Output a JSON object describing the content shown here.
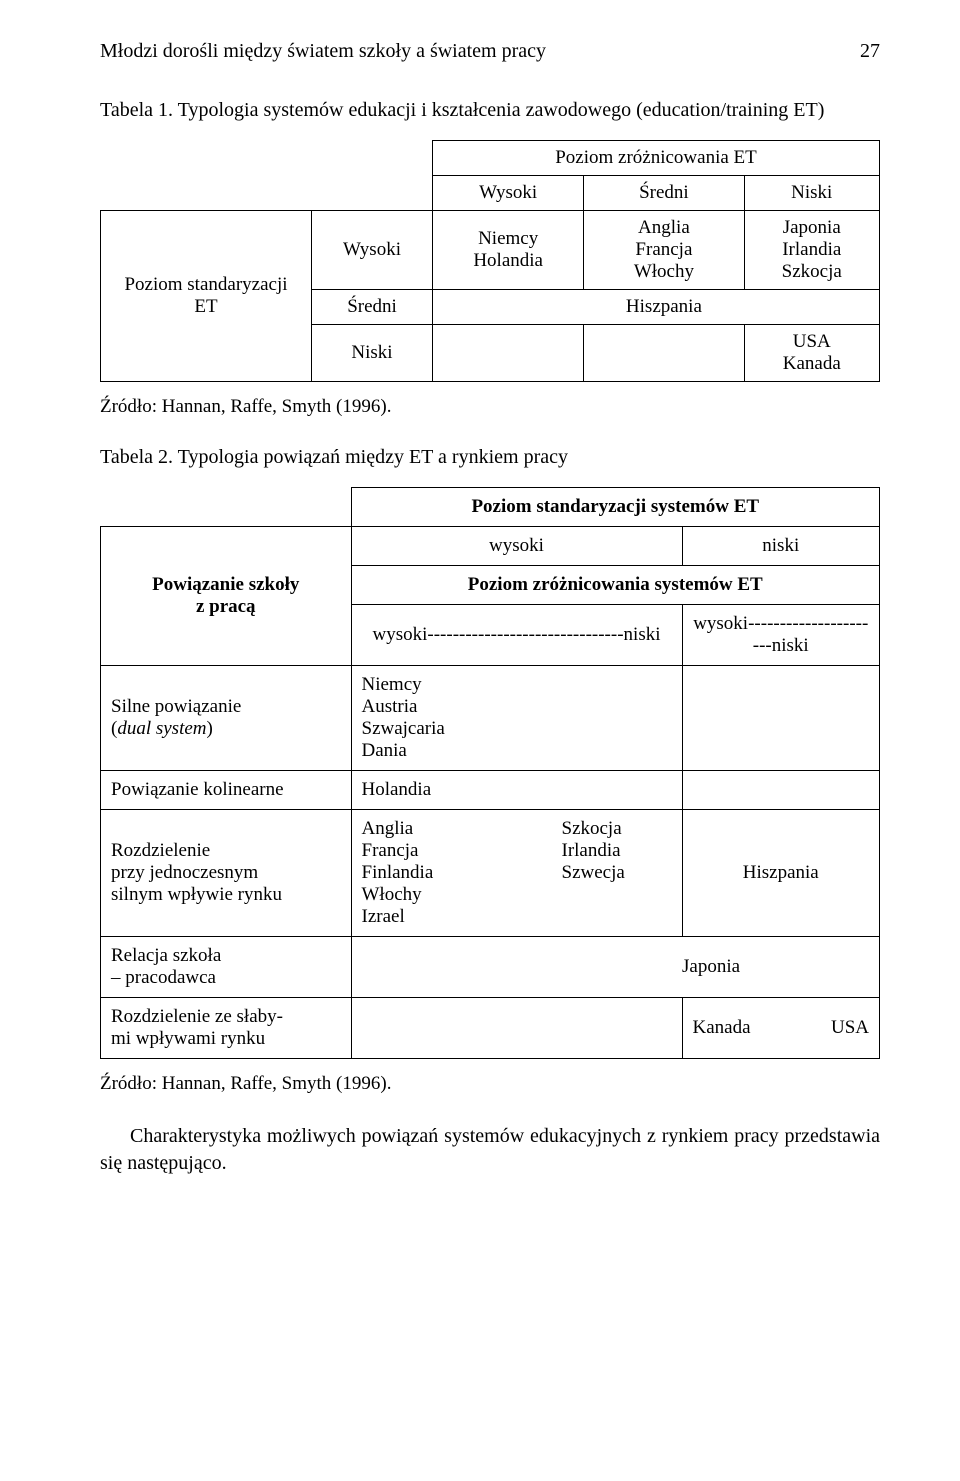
{
  "header": {
    "title": "Młodzi dorośli między światem szkoły a światem pracy",
    "page_number": "27"
  },
  "table1": {
    "caption_label": "Tabela 1. ",
    "caption_text": "Typologia systemów edukacji i kształcenia zawodowego (education/training ET)",
    "col_group_header": "Poziom zróżnicowania ET",
    "cols": {
      "c1": "Wysoki",
      "c2": "Średni",
      "c3": "Niski"
    },
    "row_group_header": "Poziom standaryzacji ET",
    "rows": {
      "r1": "Wysoki",
      "r2": "Średni",
      "r3": "Niski"
    },
    "cells": {
      "r1c1": "Niemcy\nHolandia",
      "r1c2": "Anglia\nFrancja\nWłochy",
      "r1c3": "Japonia\nIrlandia\nSzkocja",
      "r2c2": "Hiszpania",
      "r3c3": "USA\nKanada"
    },
    "source": "Źródło: Hannan, Raffe, Smyth (1996)."
  },
  "table2": {
    "caption_label": "Tabela 2. ",
    "caption_text": "Typologia powiązań między ET a rynkiem pracy",
    "header1": "Poziom standaryzacji systemów ET",
    "header2_left": "wysoki",
    "header2_right": "niski",
    "header3": "Poziom zróżnicowania systemów ET",
    "header4_left": "wysoki-------------------------------niski",
    "header4_right": "wysoki----------------------niski",
    "row_header": "Powiązanie szkoły\nz pracą",
    "rows": {
      "r1_label": "Silne powiązanie\n(dual system)",
      "r1_c1": "Niemcy\nAustria\nSzwajcaria\nDania",
      "r2_label": "Powiązanie kolinearne",
      "r2_c1": "Holandia",
      "r3_label": "Rozdzielenie\nprzy jednoczesnym\nsilnym wpływie rynku",
      "r3_col1": "Anglia\nFrancja\nFinlandia\nWłochy\nIzrael",
      "r3_col2": "Szkocja\nIrlandia\nSzwecja",
      "r3_right": "Hiszpania",
      "r4_label": "Relacja szkoła\n– pracodawca",
      "r4_mid": "Japonia",
      "r5_label": "Rozdzielenie ze słaby-\nmi wpływami rynku",
      "r5_right_a": "Kanada",
      "r5_right_b": "USA"
    },
    "source": "Źródło: Hannan, Raffe, Smyth (1996)."
  },
  "body_paragraph": "Charakterystyka możliwych powiązań systemów edukacyjnych z rynkiem pracy przedstawia się następująco."
}
